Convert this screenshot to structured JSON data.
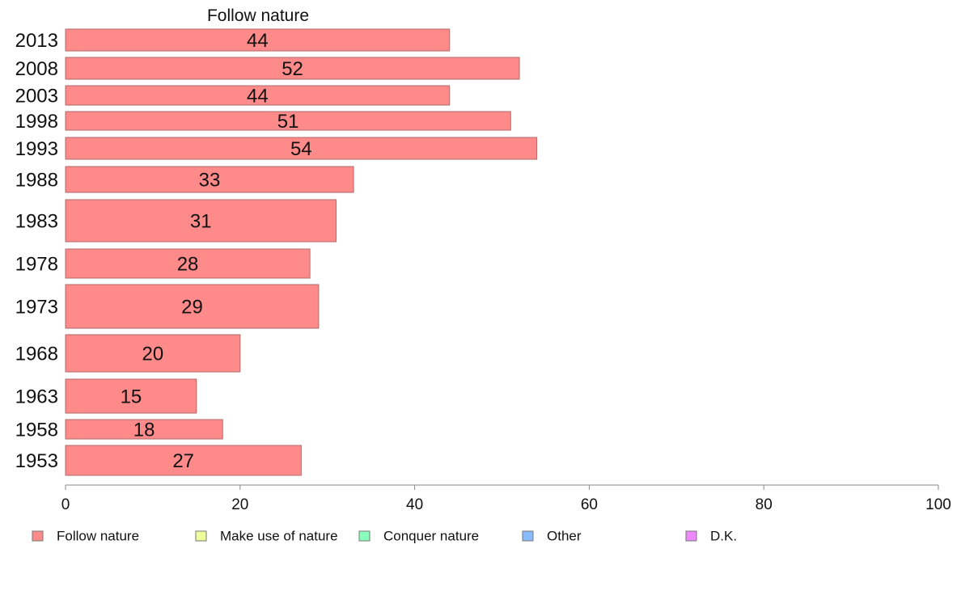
{
  "chart_data": {
    "type": "bar",
    "orientation": "horizontal",
    "title": "Follow nature",
    "categories": [
      "2013",
      "2008",
      "2003",
      "1998",
      "1993",
      "1988",
      "1983",
      "1978",
      "1973",
      "1968",
      "1963",
      "1958",
      "1953"
    ],
    "series": [
      {
        "name": "Follow nature",
        "values": [
          44,
          52,
          44,
          51,
          54,
          33,
          31,
          28,
          29,
          20,
          15,
          18,
          27
        ]
      }
    ],
    "xlim": [
      0,
      100
    ],
    "xticks": [
      "0",
      "20",
      "40",
      "60",
      "80",
      "100"
    ],
    "grid": false,
    "legend": {
      "position": "bottom",
      "entries": [
        {
          "label": "Follow nature",
          "color": "#ff8a8a"
        },
        {
          "label": "Make use of nature",
          "color": "#eeff99"
        },
        {
          "label": "Conquer nature",
          "color": "#88ffbb"
        },
        {
          "label": "Other",
          "color": "#88bbff"
        },
        {
          "label": "D.K.",
          "color": "#ee88ff"
        }
      ]
    }
  }
}
